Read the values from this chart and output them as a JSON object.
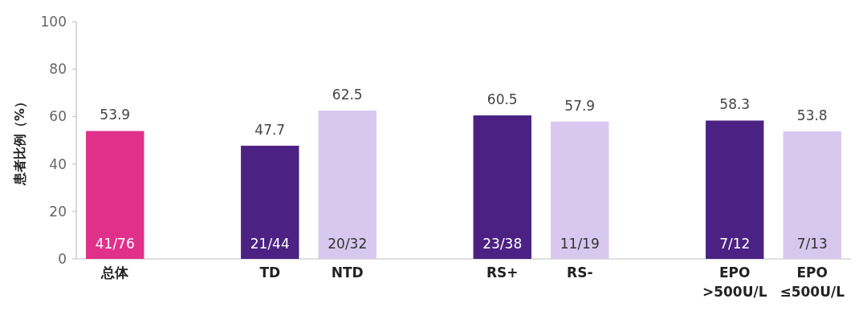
{
  "chart_data": {
    "type": "bar",
    "ylabel": "患者比例（%）",
    "categories": [
      "总体",
      null,
      "TD",
      "NTD",
      null,
      "RS+",
      "RS-",
      null,
      "EPO\n>500U/L",
      "EPO\n≤500U/L"
    ],
    "values": [
      53.9,
      null,
      47.7,
      62.5,
      null,
      60.5,
      57.9,
      null,
      58.3,
      53.8
    ],
    "colors": [
      "#e0308a",
      null,
      "#4b2283",
      "#d8c8ef",
      null,
      "#4b2283",
      "#d8c8ef",
      null,
      "#4b2283",
      "#d8c8ef"
    ],
    "data_labels": true,
    "annotations": [
      "41/76",
      "21/44",
      "20/32",
      "23/38",
      "11/19",
      "7/12",
      "7/13"
    ],
    "ylim": [
      0,
      100
    ],
    "yticks": [
      0,
      20,
      40,
      60,
      80,
      100
    ]
  }
}
